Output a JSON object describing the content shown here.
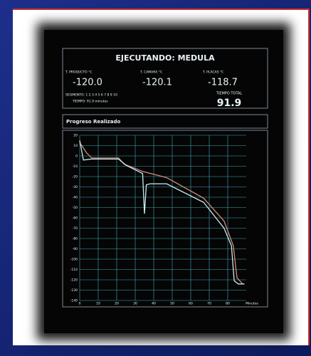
{
  "chart_data": {
    "type": "line",
    "title": "EJECUTANDO: MEDULA",
    "readouts": [
      {
        "label": "T. PRODUCTO °C",
        "value": "-120.0"
      },
      {
        "label": "T. CAMARA °C",
        "value": "-120.1"
      },
      {
        "label": "T. PLACAS °C",
        "value": "-118.7"
      }
    ],
    "segment_text": "SEGMENTO: 1 2 3 4 5 6 7 8 9 10",
    "time_text": "TIEMPO: 91.9 minutos",
    "total_label": "TIEMPO TOTAL",
    "total_value": 91.9,
    "subtitle": "Progreso Realizado",
    "xlabel": "Minutos",
    "xlim": [
      0,
      90
    ],
    "xticks": [
      0,
      10,
      20,
      30,
      40,
      50,
      60,
      70,
      80
    ],
    "ylim": [
      -140,
      20
    ],
    "yticks": [
      20,
      10,
      0,
      -10,
      -20,
      -30,
      -40,
      -50,
      -60,
      -70,
      -80,
      -90,
      -100,
      -110,
      -120,
      -130,
      -140
    ],
    "grid": true,
    "grid_color": "#3fa9b8",
    "series": [
      {
        "color": "#d98a7a",
        "x": [
          0,
          3.7,
          6.5,
          21,
          24,
          34,
          47,
          67,
          78,
          83,
          85,
          88
        ],
        "values": [
          13,
          3,
          -2,
          -2,
          -8,
          -15,
          -21,
          -41,
          -63,
          -87,
          -118,
          -124
        ]
      },
      {
        "color": "#c4eef2",
        "x": [
          0,
          2,
          6.5,
          21,
          25,
          34,
          35,
          36,
          38,
          47,
          67,
          78,
          82,
          83.5,
          85.7,
          89
        ],
        "values": [
          15,
          -4,
          -3,
          -3,
          -9,
          -17,
          -56,
          -28,
          -27,
          -27,
          -45,
          -70,
          -87,
          -121,
          -124,
          -124
        ]
      }
    ]
  }
}
